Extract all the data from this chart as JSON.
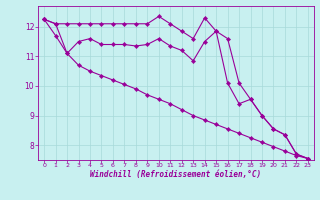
{
  "x": [
    0,
    1,
    2,
    3,
    4,
    5,
    6,
    7,
    8,
    9,
    10,
    11,
    12,
    13,
    14,
    15,
    16,
    17,
    18,
    19,
    20,
    21,
    22,
    23
  ],
  "line1": [
    12.25,
    12.1,
    12.1,
    12.1,
    12.1,
    12.1,
    12.1,
    12.1,
    12.1,
    12.1,
    12.35,
    12.1,
    11.85,
    11.6,
    12.3,
    11.85,
    11.6,
    10.1,
    9.55,
    9.0,
    8.55,
    8.35,
    7.7,
    7.55
  ],
  "line2": [
    12.25,
    12.1,
    11.1,
    11.5,
    11.6,
    11.4,
    11.4,
    11.4,
    11.35,
    11.4,
    11.6,
    11.35,
    11.2,
    10.85,
    11.5,
    11.85,
    10.1,
    9.4,
    9.55,
    9.0,
    8.55,
    8.35,
    7.7,
    7.55
  ],
  "line3": [
    12.25,
    11.7,
    11.1,
    10.7,
    10.5,
    10.35,
    10.2,
    10.05,
    9.9,
    9.7,
    9.55,
    9.4,
    9.2,
    9.0,
    8.85,
    8.7,
    8.55,
    8.4,
    8.25,
    8.1,
    7.95,
    7.8,
    7.65,
    7.55
  ],
  "line_color": "#990099",
  "bg_color": "#c8f0f0",
  "grid_color": "#a8dada",
  "axis_color": "#990099",
  "xlabel": "Windchill (Refroidissement éolien,°C)",
  "ylim": [
    7.5,
    12.7
  ],
  "xlim": [
    -0.5,
    23.5
  ],
  "yticks": [
    8,
    9,
    10,
    11,
    12
  ],
  "xticks": [
    0,
    1,
    2,
    3,
    4,
    5,
    6,
    7,
    8,
    9,
    10,
    11,
    12,
    13,
    14,
    15,
    16,
    17,
    18,
    19,
    20,
    21,
    22,
    23
  ]
}
